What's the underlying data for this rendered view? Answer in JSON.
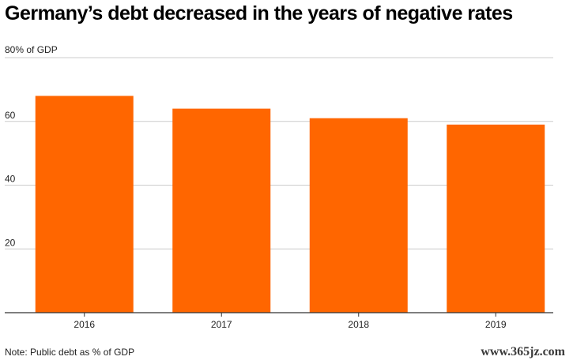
{
  "chart_data": {
    "type": "bar",
    "title": "Germany’s debt decreased in the years of negative rates",
    "ylabel": "80% of GDP",
    "categories": [
      "2016",
      "2017",
      "2018",
      "2019"
    ],
    "values": [
      68,
      64,
      61,
      59
    ],
    "ylim": [
      0,
      80
    ],
    "yticks": [
      "",
      "20",
      "40",
      "60"
    ],
    "grid": true,
    "note": "Note: Public debt as % of GDP"
  },
  "colors": {
    "bar": "#ff6600",
    "grid": "#cccccc",
    "axis": "#333333"
  },
  "watermark": "www.365jz.com"
}
